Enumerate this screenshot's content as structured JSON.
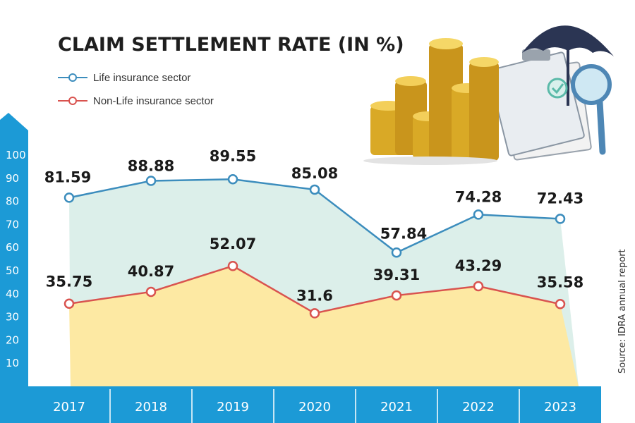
{
  "chart_data": {
    "type": "line",
    "title": "CLAIM SETTLEMENT RATE (IN %)",
    "categories": [
      "2017",
      "2018",
      "2019",
      "2020",
      "2021",
      "2022",
      "2023"
    ],
    "series": [
      {
        "name": "Life insurance sector",
        "color": "#3c8dbd",
        "values": [
          81.59,
          88.88,
          89.55,
          85.08,
          57.84,
          74.28,
          72.43
        ],
        "labels": [
          "81.59",
          "88.88",
          "89.55",
          "85.08",
          "57.84",
          "74.28",
          "72.43"
        ]
      },
      {
        "name": "Non-Life insurance sector",
        "color": "#d9534f",
        "values": [
          35.75,
          40.87,
          52.07,
          31.6,
          39.31,
          43.29,
          35.58
        ],
        "labels": [
          "35.75",
          "40.87",
          "52.07",
          "31.6",
          "39.31",
          "43.29",
          "35.58"
        ]
      }
    ],
    "yticks": [
      "10",
      "20",
      "30",
      "40",
      "50",
      "60",
      "70",
      "80",
      "90",
      "100"
    ],
    "ylim": [
      0,
      100
    ],
    "xlabel": "",
    "ylabel": "",
    "grid": false,
    "legend": "top-left",
    "source": "Source: IDRA annual report"
  },
  "colors": {
    "axis_band": "#1c9ad6",
    "life_fill": "#dcefea",
    "nonlife_fill": "#fde9a3"
  }
}
